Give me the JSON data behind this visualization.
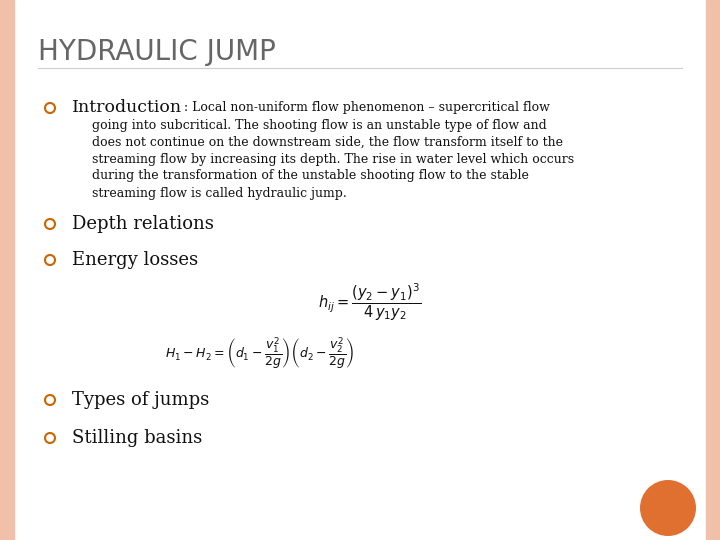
{
  "title": "HYDRAULIC JUMP",
  "title_color": "#666666",
  "title_fontsize": 20,
  "bg_color": "#ffffff",
  "left_border_color": "#f0c0a8",
  "right_border_color": "#f0c0a8",
  "bullet_color": "#cc6600",
  "intro_label": "Introduction",
  "intro_colon_text": " : Local non-uniform flow phenomenon – supercritical flow",
  "intro_lines": [
    "going into subcritical. The shooting flow is an unstable type of flow and",
    "does not continue on the downstream side, the flow transform itself to the",
    "streaming flow by increasing its depth. The rise in water level which occurs",
    "during the transformation of the unstable shooting flow to the stable",
    "streaming flow is called hydraulic jump."
  ],
  "depth_label": "Depth relations",
  "energy_label": "Energy losses",
  "types_label": "Types of jumps",
  "stilling_label": "Stilling basins",
  "formula1": "$h_{ij} = \\dfrac{(y_2 - y_1)^3}{4\\,y_1 y_2}$",
  "formula2": "$H_1 - H_2 = \\left(d_1 - \\dfrac{v_1^2}{2g}\\right)\\left(d_2 - \\dfrac{v_2^2}{2g}\\right)$",
  "orange_circle_color": "#e07030",
  "figwidth": 7.2,
  "figheight": 5.4,
  "dpi": 100
}
